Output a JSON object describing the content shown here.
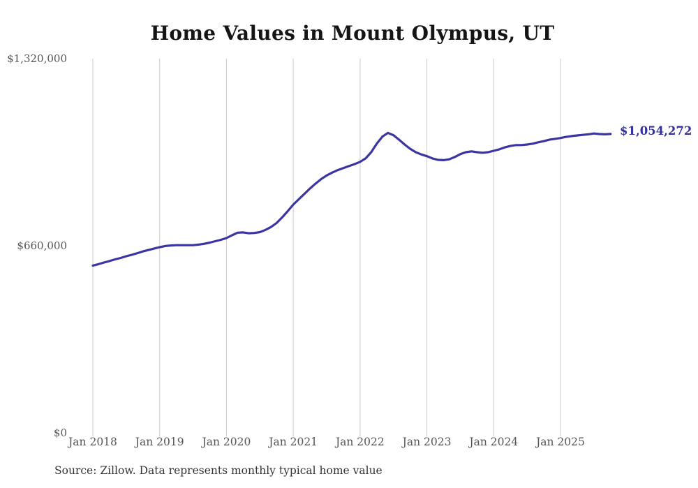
{
  "title": "Home Values in Mount Olympus, UT",
  "source_note": "Source: Zillow. Data represents monthly typical home value",
  "end_label": "$1,054,272",
  "colors": {
    "line": "#3b35a3",
    "grid": "#cccccc",
    "axis_text": "#555555",
    "end_label_text": "#33309f",
    "title_text": "#151515",
    "source_text": "#333333"
  },
  "y_axis": {
    "ticks": [
      "$0",
      "$660,000",
      "$1,320,000"
    ],
    "min": 0,
    "max": 1320000
  },
  "x_axis": {
    "ticks": [
      "Jan 2018",
      "Jan 2019",
      "Jan 2020",
      "Jan 2021",
      "Jan 2022",
      "Jan 2023",
      "Jan 2024",
      "Jan 2025"
    ]
  },
  "chart_data": {
    "type": "line",
    "title": "Home Values in Mount Olympus, UT",
    "xlabel": "",
    "ylabel": "",
    "ylim": [
      0,
      1320000
    ],
    "grid": "vertical-only",
    "legend": "none",
    "series_name": "Typical home value (monthly)",
    "last_point_label": "$1,054,272",
    "x": [
      "2018-01",
      "2018-02",
      "2018-03",
      "2018-04",
      "2018-05",
      "2018-06",
      "2018-07",
      "2018-08",
      "2018-09",
      "2018-10",
      "2018-11",
      "2018-12",
      "2019-01",
      "2019-02",
      "2019-03",
      "2019-04",
      "2019-05",
      "2019-06",
      "2019-07",
      "2019-08",
      "2019-09",
      "2019-10",
      "2019-11",
      "2019-12",
      "2020-01",
      "2020-02",
      "2020-03",
      "2020-04",
      "2020-05",
      "2020-06",
      "2020-07",
      "2020-08",
      "2020-09",
      "2020-10",
      "2020-11",
      "2020-12",
      "2021-01",
      "2021-02",
      "2021-03",
      "2021-04",
      "2021-05",
      "2021-06",
      "2021-07",
      "2021-08",
      "2021-09",
      "2021-10",
      "2021-11",
      "2021-12",
      "2022-01",
      "2022-02",
      "2022-03",
      "2022-04",
      "2022-05",
      "2022-06",
      "2022-07",
      "2022-08",
      "2022-09",
      "2022-10",
      "2022-11",
      "2022-12",
      "2023-01",
      "2023-02",
      "2023-03",
      "2023-04",
      "2023-05",
      "2023-06",
      "2023-07",
      "2023-08",
      "2023-09",
      "2023-10",
      "2023-11",
      "2023-12",
      "2024-01",
      "2024-02",
      "2024-03",
      "2024-04",
      "2024-05",
      "2024-06",
      "2024-07",
      "2024-08",
      "2024-09",
      "2024-10",
      "2024-11",
      "2024-12",
      "2025-01",
      "2025-02",
      "2025-03",
      "2025-04",
      "2025-05",
      "2025-06",
      "2025-07",
      "2025-08",
      "2025-09",
      "2025-10"
    ],
    "values": [
      590000,
      595000,
      601000,
      606000,
      612000,
      617000,
      623000,
      628000,
      634000,
      640000,
      645000,
      650000,
      655000,
      659000,
      661000,
      662000,
      662000,
      662000,
      662000,
      664000,
      667000,
      671000,
      676000,
      681000,
      687000,
      697000,
      706000,
      707000,
      704000,
      705000,
      708000,
      716000,
      726000,
      740000,
      760000,
      782000,
      805000,
      824000,
      843000,
      862000,
      879000,
      895000,
      908000,
      918000,
      927000,
      934000,
      941000,
      948000,
      956000,
      968000,
      990000,
      1020000,
      1045000,
      1058000,
      1050000,
      1034000,
      1017000,
      1002000,
      990000,
      982000,
      976000,
      968000,
      963000,
      962000,
      965000,
      973000,
      983000,
      990000,
      993000,
      990000,
      988000,
      990000,
      995000,
      1000000,
      1007000,
      1012000,
      1015000,
      1015000,
      1017000,
      1020000,
      1025000,
      1029000,
      1034000,
      1037000,
      1040000,
      1044000,
      1047000,
      1049000,
      1051000,
      1053000,
      1056000,
      1054000,
      1053000,
      1054272
    ]
  }
}
